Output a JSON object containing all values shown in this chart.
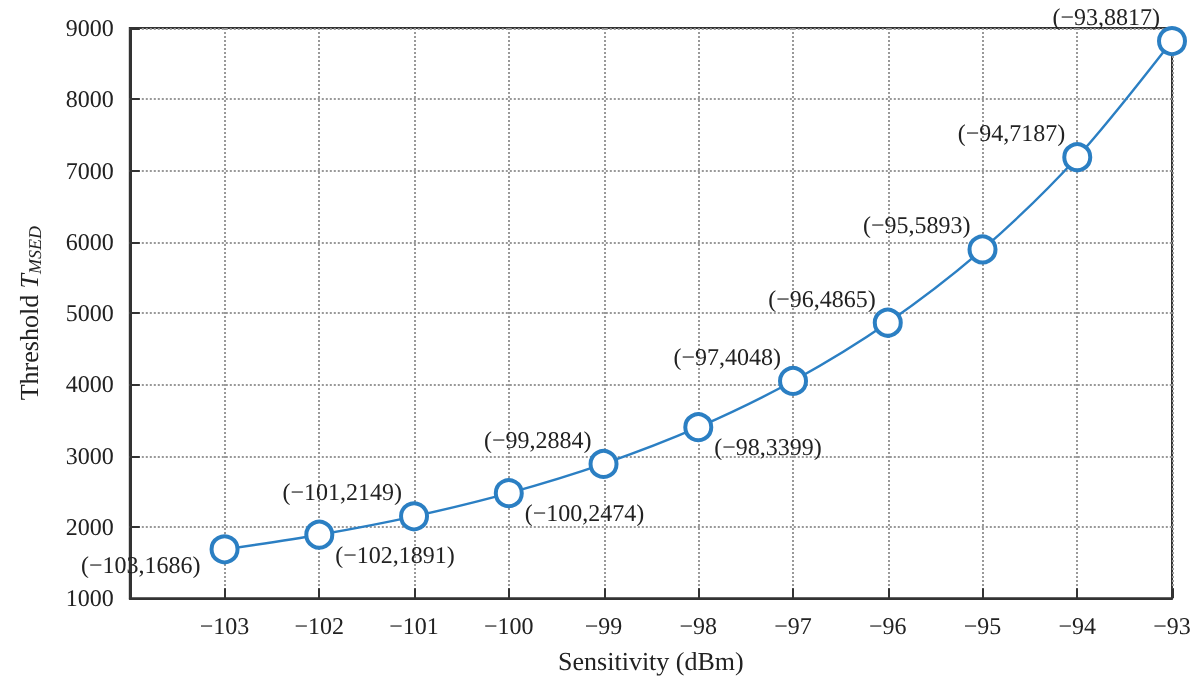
{
  "chart_data": {
    "type": "line",
    "xlabel": "Sensitivity (dBm)",
    "ylabel": "Threshold T$_{MSED}$",
    "x": [
      -103,
      -102,
      -101,
      -100,
      -99,
      -98,
      -97,
      -96,
      -95,
      -94,
      -93
    ],
    "series": [
      {
        "color": "#2b7fc3",
        "values": [
          1686,
          1891,
          2149,
          2474,
          2884,
          3399,
          4048,
          4865,
          5893,
          7187,
          8817
        ],
        "value_labels": [
          "(−103,1686)",
          "(−102,1891)",
          "(−101,2149)",
          "(−100,2474)",
          "(−99,2884)",
          "(−98,3399)",
          "(−97,4048)",
          "(−96,4865)",
          "(−95,5893)",
          "(−94,7187)",
          "(−93,8817)"
        ]
      }
    ],
    "xlim": [
      -104,
      -93
    ],
    "xticks": [
      -103,
      -102,
      -101,
      -100,
      -99,
      -98,
      -97,
      -96,
      -95,
      -94,
      -93
    ],
    "ylim": [
      1000,
      9000
    ],
    "yticks": [
      1000,
      2000,
      3000,
      4000,
      5000,
      6000,
      7000,
      8000,
      9000
    ],
    "grid": true,
    "marker": "circle",
    "line_style": "solid"
  }
}
